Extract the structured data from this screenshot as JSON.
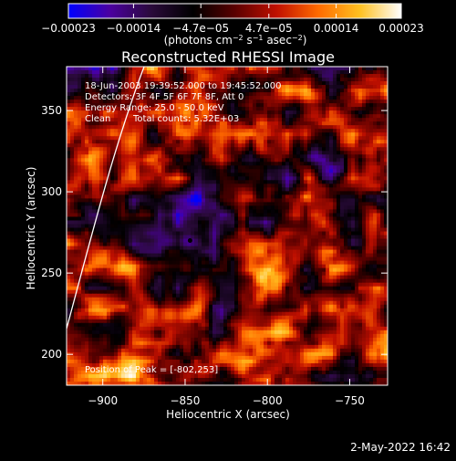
{
  "chart_data": {
    "type": "heatmap",
    "title": "Reconstructed RHESSI Image",
    "xlabel": "Heliocentric X (arcsec)",
    "ylabel": "Heliocentric Y (arcsec)",
    "x_ticks": [
      -900,
      -850,
      -800,
      -750
    ],
    "y_ticks": [
      200,
      250,
      300,
      350
    ],
    "x_tick_labels": [
      "−900",
      "−850",
      "−800",
      "−750"
    ],
    "y_tick_labels": [
      "200",
      "250",
      "300",
      "350"
    ],
    "xlim": [
      -922,
      -727
    ],
    "ylim": [
      181,
      377
    ],
    "colorbar": {
      "range": [
        -0.00023,
        0.00023
      ],
      "ticks": [
        -0.00023,
        -0.00014,
        -4.7e-05,
        4.7e-05,
        0.00014,
        0.00023
      ],
      "tick_labels": [
        "−0.00023",
        "−0.00014",
        "−4.7e−05",
        "4.7e−05",
        "0.00014",
        "0.00023"
      ],
      "units_prefix": "(photons cm",
      "units_suffix": " asec",
      "colors": [
        "#0000ff",
        "#4b00a0",
        "#2a0a3a",
        "#000000",
        "#5a0000",
        "#c01000",
        "#ff6a00",
        "#ffc020",
        "#ffffff"
      ]
    },
    "annotations": {
      "time_range": "18-Jun-2003 19:39:52.000 to 19:45:52.000",
      "detectors": "Detectors: 3F 4F 5F 6F 7F 8F, Att 0",
      "energy": "Energy Range: 25.0 - 50.0 keV",
      "method_clean": "Clean",
      "total_counts": "Total counts: 5.32E+03",
      "peak": "Position of Peak = [-802,253]"
    },
    "peak": {
      "x": -802,
      "y": 253
    }
  },
  "footer": {
    "timestamp": "2-May-2022 16:42"
  }
}
